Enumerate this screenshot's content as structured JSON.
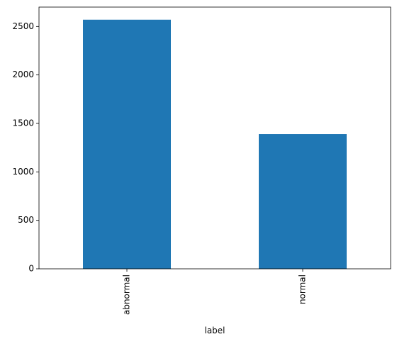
{
  "chart_data": {
    "type": "bar",
    "xlabel": "label",
    "categories": [
      "abnormal",
      "normal"
    ],
    "values": [
      2570,
      1390
    ],
    "color": "#1f77b4",
    "ylim": [
      0,
      2700
    ],
    "yticks": [
      0,
      500,
      1000,
      1500,
      2000,
      2500
    ],
    "grid": false
  }
}
